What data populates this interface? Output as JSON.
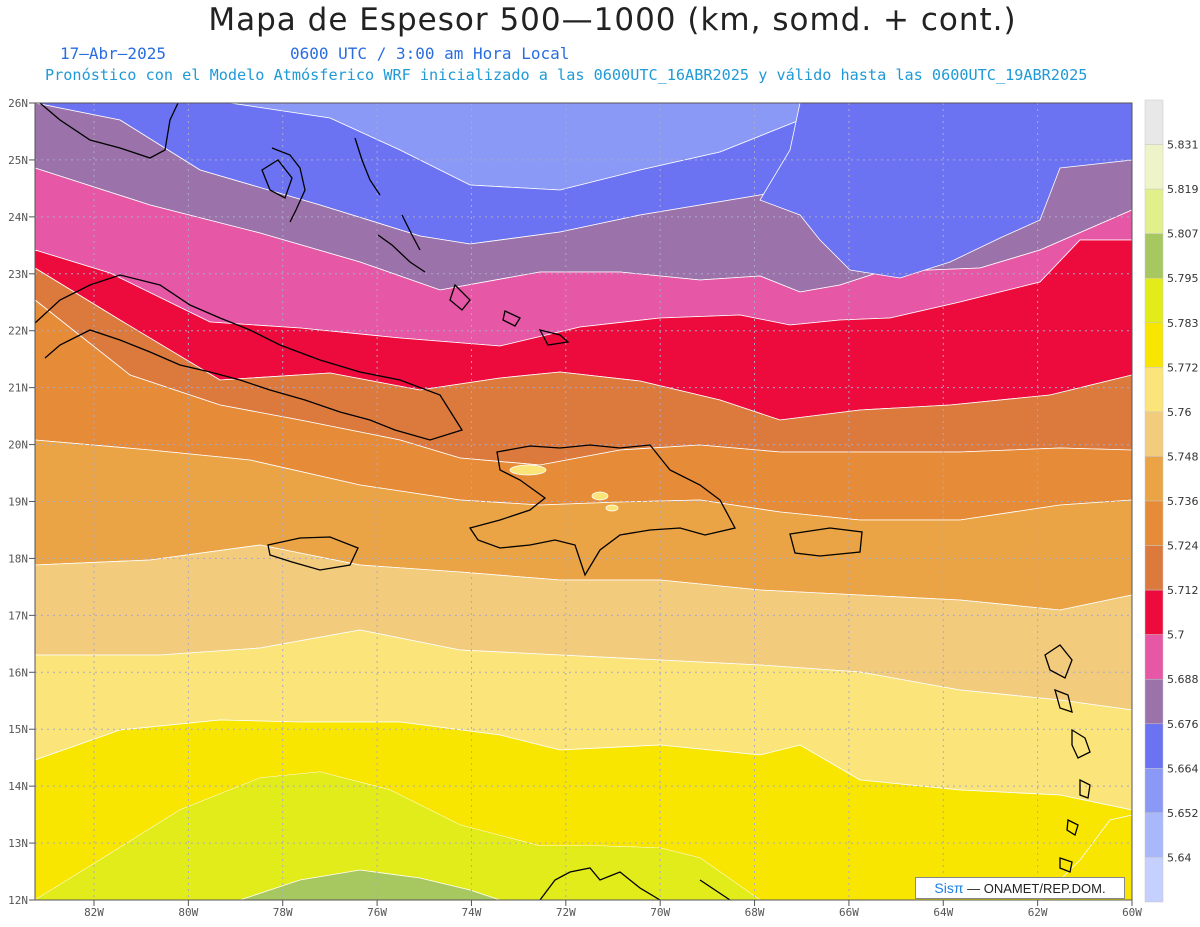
{
  "header": {
    "title": "Mapa de Espesor 500—1000 (km, somd. + cont.)",
    "date": "17—Abr—2025",
    "time": "0600 UTC / 3:00 am Hora Local",
    "forecast": "Pronóstico con el Modelo Atmósferico WRF inicializado a las 0600UTC_16ABR2025 y válido hasta las  0600UTC_19ABR2025"
  },
  "axes": {
    "lat_labels": [
      "26N",
      "25N",
      "24N",
      "23N",
      "22N",
      "21N",
      "20N",
      "19N",
      "18N",
      "17N",
      "16N",
      "15N",
      "14N",
      "13N",
      "12N"
    ],
    "lon_labels": [
      "82W",
      "80W",
      "78W",
      "76W",
      "74W",
      "72W",
      "70W",
      "68W",
      "66W",
      "64W",
      "62W",
      "60W"
    ]
  },
  "colorbar": {
    "levels": [
      "5.831",
      "5.819",
      "5.807",
      "5.795",
      "5.783",
      "5.772",
      "5.76",
      "5.748",
      "5.736",
      "5.724",
      "5.712",
      "5.7",
      "5.688",
      "5.676",
      "5.664",
      "5.652",
      "5.64"
    ],
    "colors": [
      "#e8e8e8",
      "#eef4c8",
      "#e1f08a",
      "#a7c860",
      "#e3ec1b",
      "#f8e500",
      "#fbe57a",
      "#f3cb7c",
      "#eaa445",
      "#e68b37",
      "#dc7a3e",
      "#ed0a3c",
      "#e657a6",
      "#9c72aa",
      "#6b73f3",
      "#8a99f6",
      "#a8b8fb",
      "#c5d0fe"
    ]
  },
  "signature": {
    "brand": "Sisπ",
    "org": "— ONAMET/REP.DOM."
  }
}
